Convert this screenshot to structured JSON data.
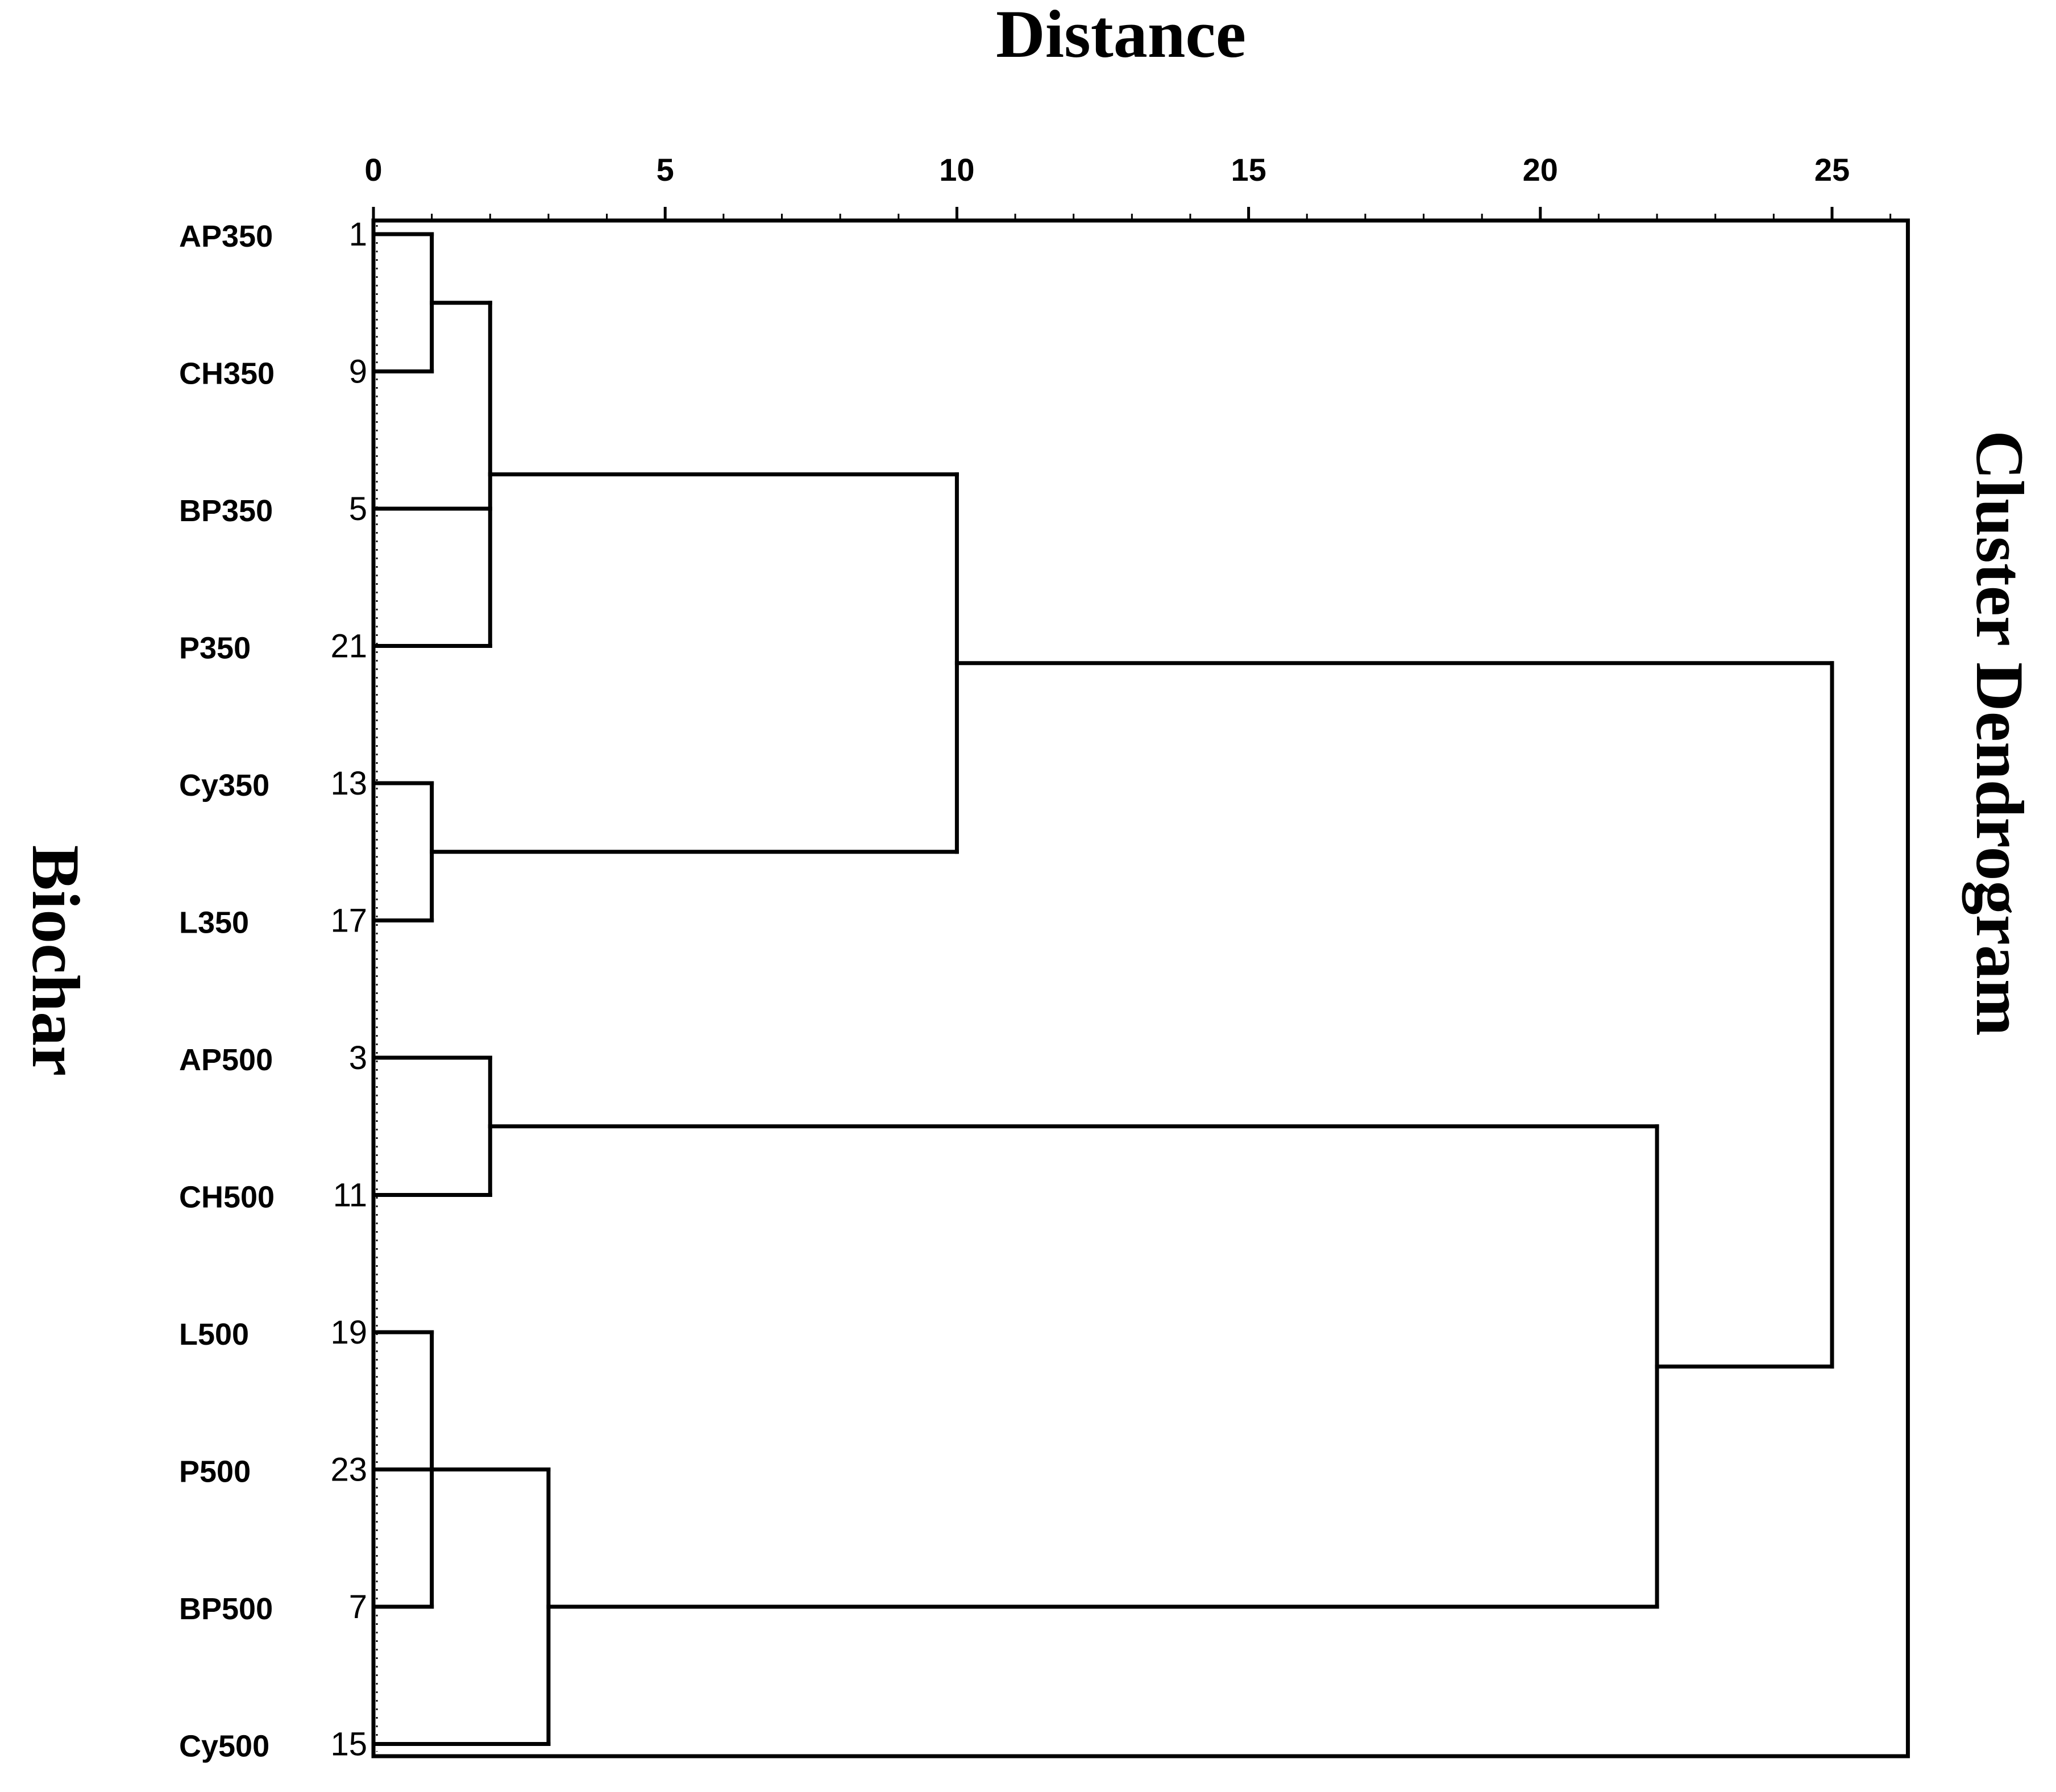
{
  "chart_data": {
    "type": "dendrogram",
    "title": "Distance",
    "ylabel": "Biochar",
    "side_title": "Cluster Dendrogram",
    "xlim": [
      0,
      26.3
    ],
    "x_ticks": [
      0,
      5,
      10,
      15,
      20,
      25
    ],
    "leaves": [
      {
        "label": "AP350",
        "number": "1"
      },
      {
        "label": "CH350",
        "number": "9"
      },
      {
        "label": "BP350",
        "number": "5"
      },
      {
        "label": "P350",
        "number": "21"
      },
      {
        "label": "Cy350",
        "number": "13"
      },
      {
        "label": "L350",
        "number": "17"
      },
      {
        "label": "AP500",
        "number": "3"
      },
      {
        "label": "CH500",
        "number": "11"
      },
      {
        "label": "L500",
        "number": "19"
      },
      {
        "label": "P500",
        "number": "23"
      },
      {
        "label": "BP500",
        "number": "7"
      },
      {
        "label": "Cy500",
        "number": "15"
      }
    ],
    "merges": [
      {
        "children": [
          "leaf:0",
          "leaf:1"
        ],
        "distance": 1
      },
      {
        "children": [
          "merge:0",
          "leaf:2",
          "leaf:3"
        ],
        "distance": 2
      },
      {
        "children": [
          "leaf:4",
          "leaf:5"
        ],
        "distance": 1
      },
      {
        "children": [
          "merge:1",
          "merge:2"
        ],
        "distance": 10
      },
      {
        "children": [
          "leaf:6",
          "leaf:7"
        ],
        "distance": 2
      },
      {
        "children": [
          "leaf:8",
          "leaf:9",
          "leaf:10"
        ],
        "distance": 1
      },
      {
        "children": [
          "merge:5",
          "leaf:11"
        ],
        "distance": 3
      },
      {
        "children": [
          "merge:4",
          "merge:6"
        ],
        "distance": 22
      },
      {
        "children": [
          "merge:3",
          "merge:7"
        ],
        "distance": 25
      }
    ]
  }
}
